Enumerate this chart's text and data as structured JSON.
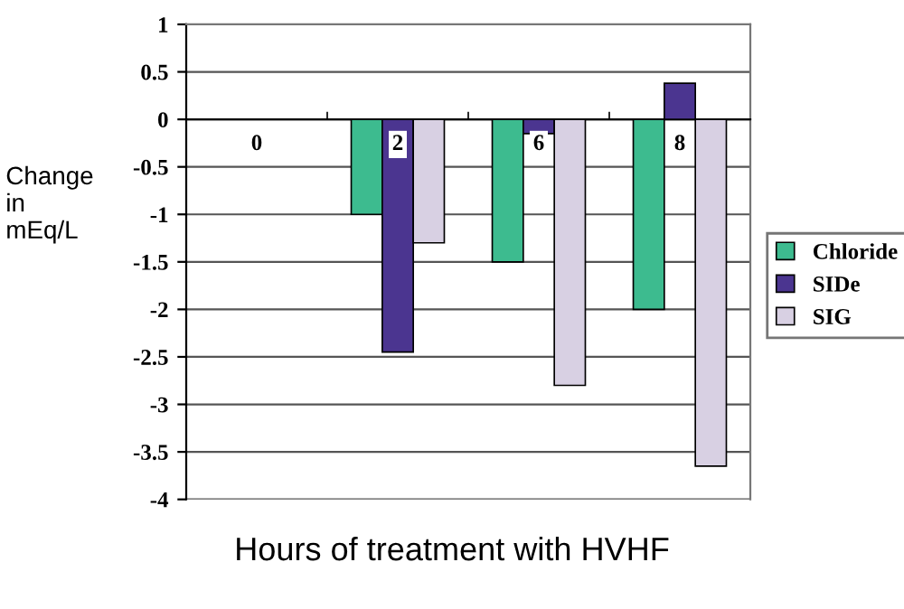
{
  "chart_data": {
    "type": "bar",
    "categories": [
      "0",
      "2",
      "6",
      "8"
    ],
    "series": [
      {
        "name": "Chloride",
        "color": "#3dbb8f",
        "values": [
          null,
          -1,
          -1.5,
          -2
        ]
      },
      {
        "name": "SIDe",
        "color": "#4b3590",
        "values": [
          null,
          -2.45,
          -0.15,
          0.38
        ]
      },
      {
        "name": "SIG",
        "color": "#d8d0e3",
        "values": [
          null,
          -1.3,
          -2.8,
          -3.65
        ]
      }
    ],
    "ylim": [
      -4,
      1
    ],
    "yticks": [
      1,
      0.5,
      0,
      -0.5,
      -1,
      -1.5,
      -2,
      -2.5,
      -3,
      -3.5,
      -4
    ],
    "ylabel": "Change\nin\nmEq/L",
    "xlabel": "Hours of treatment with HVHF",
    "grid": "y",
    "legend": "right"
  }
}
